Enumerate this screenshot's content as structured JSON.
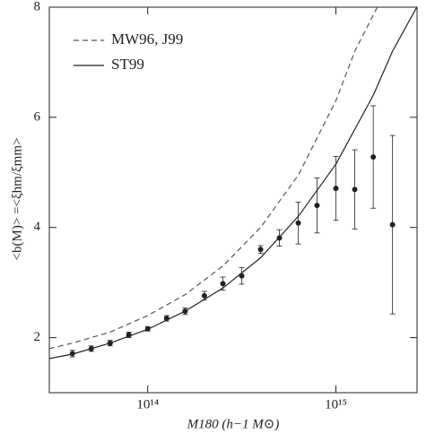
{
  "chart_data": {
    "type": "scatter",
    "x_label": "M180 (h−1 M⊙)",
    "y_label": "<b(M)> =<ξhm/ξmm>",
    "x_log": true,
    "xlim": [
      30000000000000.0,
      2700000000000000.0
    ],
    "ylim": [
      1,
      8
    ],
    "xticks": [
      {
        "value": 100000000000000.0,
        "label": "10¹⁴"
      },
      {
        "value": 1000000000000000.0,
        "label": "10¹⁵"
      }
    ],
    "yticks": [
      2,
      4,
      6,
      8
    ],
    "legend": "upper left",
    "x": [
      39800000000000.0,
      50100000000000.0,
      63100000000000.0,
      79400000000000.0,
      100000000000000.0,
      126000000000000.0,
      158000000000000.0,
      200000000000000.0,
      251000000000000.0,
      316000000000000.0,
      398000000000000.0,
      501000000000000.0,
      631000000000000.0,
      794000000000000.0,
      1000000000000000.0,
      1260000000000000.0,
      1580000000000000.0,
      2000000000000000.0
    ],
    "values": [
      1.71,
      1.8,
      1.9,
      2.05,
      2.16,
      2.35,
      2.48,
      2.76,
      2.98,
      3.12,
      3.6,
      3.81,
      4.08,
      4.4,
      4.71,
      4.69,
      5.28,
      4.05
    ],
    "errors": [
      0.06,
      0.05,
      0.05,
      0.05,
      0.04,
      0.05,
      0.06,
      0.08,
      0.12,
      0.15,
      0.07,
      0.15,
      0.38,
      0.5,
      0.58,
      0.72,
      0.93,
      1.62
    ],
    "color": "#222222",
    "lines": [
      {
        "name": "MW96, J99",
        "dash": true,
        "color": "#555555",
        "x": [
          30000000000000.0,
          39800000000000.0,
          63100000000000.0,
          100000000000000.0,
          158000000000000.0,
          251000000000000.0,
          398000000000000.0,
          631000000000000.0,
          1000000000000000.0,
          1260000000000000.0,
          1660000000000000.0
        ],
        "values": [
          1.8,
          1.9,
          2.1,
          2.4,
          2.78,
          3.3,
          4.0,
          4.95,
          6.3,
          7.2,
          8.0
        ]
      },
      {
        "name": "ST99",
        "dash": false,
        "color": "#222222",
        "x": [
          30000000000000.0,
          39800000000000.0,
          63100000000000.0,
          100000000000000.0,
          158000000000000.0,
          251000000000000.0,
          398000000000000.0,
          631000000000000.0,
          1000000000000000.0,
          1580000000000000.0,
          2000000000000000.0,
          2690000000000000.0
        ],
        "values": [
          1.62,
          1.7,
          1.9,
          2.15,
          2.48,
          2.9,
          3.45,
          4.2,
          5.15,
          6.4,
          7.2,
          8.0
        ]
      }
    ]
  }
}
